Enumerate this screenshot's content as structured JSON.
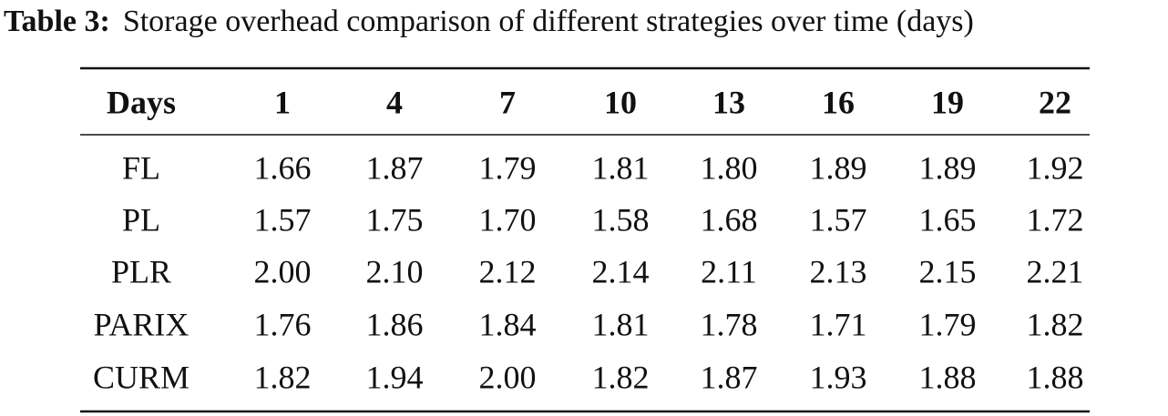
{
  "caption": {
    "label": "Table 3:",
    "text": "Storage overhead comparison of different strategies over time (days)"
  },
  "table": {
    "header": [
      "Days",
      "1",
      "4",
      "7",
      "10",
      "13",
      "16",
      "19",
      "22"
    ],
    "rows": [
      [
        "FL",
        "1.66",
        "1.87",
        "1.79",
        "1.81",
        "1.80",
        "1.89",
        "1.89",
        "1.92"
      ],
      [
        "PL",
        "1.57",
        "1.75",
        "1.70",
        "1.58",
        "1.68",
        "1.57",
        "1.65",
        "1.72"
      ],
      [
        "PLR",
        "2.00",
        "2.10",
        "2.12",
        "2.14",
        "2.11",
        "2.13",
        "2.15",
        "2.21"
      ],
      [
        "PARIX",
        "1.76",
        "1.86",
        "1.84",
        "1.81",
        "1.78",
        "1.71",
        "1.79",
        "1.82"
      ],
      [
        "CURM",
        "1.82",
        "1.94",
        "2.00",
        "1.82",
        "1.87",
        "1.93",
        "1.88",
        "1.88"
      ]
    ]
  }
}
